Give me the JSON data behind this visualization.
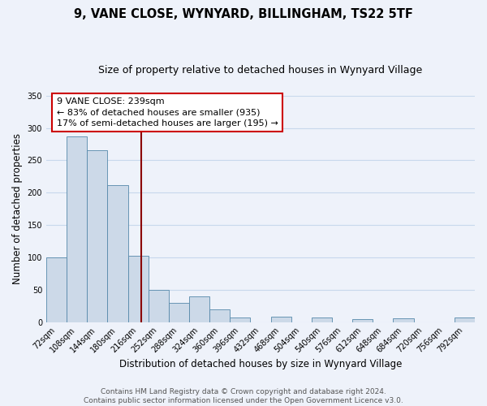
{
  "title": "9, VANE CLOSE, WYNYARD, BILLINGHAM, TS22 5TF",
  "subtitle": "Size of property relative to detached houses in Wynyard Village",
  "xlabel": "Distribution of detached houses by size in Wynyard Village",
  "ylabel": "Number of detached properties",
  "bin_labels": [
    "72sqm",
    "108sqm",
    "144sqm",
    "180sqm",
    "216sqm",
    "252sqm",
    "288sqm",
    "324sqm",
    "360sqm",
    "396sqm",
    "432sqm",
    "468sqm",
    "504sqm",
    "540sqm",
    "576sqm",
    "612sqm",
    "648sqm",
    "684sqm",
    "720sqm",
    "756sqm",
    "792sqm"
  ],
  "bar_heights": [
    100,
    287,
    265,
    212,
    102,
    50,
    30,
    40,
    20,
    7,
    0,
    8,
    0,
    7,
    0,
    5,
    0,
    6,
    0,
    0,
    7
  ],
  "bar_color": "#ccd9e8",
  "bar_edge_color": "#5588aa",
  "grid_color": "#c8d8ec",
  "background_color": "#eef2fa",
  "vline_color": "#8b0000",
  "annotation_text": "9 VANE CLOSE: 239sqm\n← 83% of detached houses are smaller (935)\n17% of semi-detached houses are larger (195) →",
  "annotation_box_color": "#ffffff",
  "annotation_box_edge": "#cc0000",
  "ylim": [
    0,
    350
  ],
  "yticks": [
    0,
    50,
    100,
    150,
    200,
    250,
    300,
    350
  ],
  "footer": "Contains HM Land Registry data © Crown copyright and database right 2024.\nContains public sector information licensed under the Open Government Licence v3.0.",
  "title_fontsize": 10.5,
  "subtitle_fontsize": 9,
  "axis_label_fontsize": 8.5,
  "tick_fontsize": 7,
  "annotation_fontsize": 8,
  "footer_fontsize": 6.5
}
